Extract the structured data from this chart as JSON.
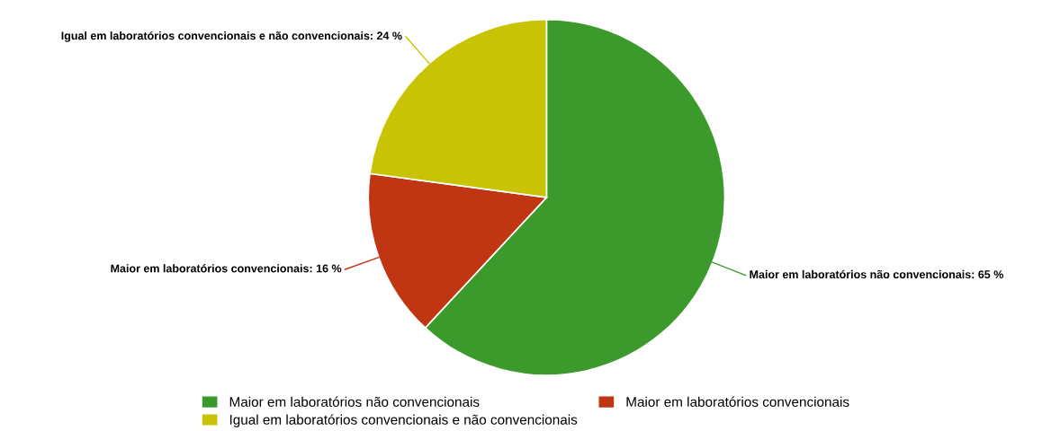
{
  "chart_data": {
    "type": "pie",
    "categories": [
      "Maior em laboratórios não convencionais",
      "Maior em laboratórios convencionais",
      "Igual em laboratórios convencionais e não convencionais"
    ],
    "values": [
      65,
      16,
      24
    ],
    "value_labels": [
      "Maior em laboratórios não convencionais: 65 %",
      "Maior em laboratórios convencionais: 16 %",
      "Igual em laboratórios convencionais e não convencionais: 24 %"
    ],
    "colors": [
      "#3c9a2c",
      "#c03512",
      "#c8c405"
    ],
    "legend": "bottom"
  }
}
